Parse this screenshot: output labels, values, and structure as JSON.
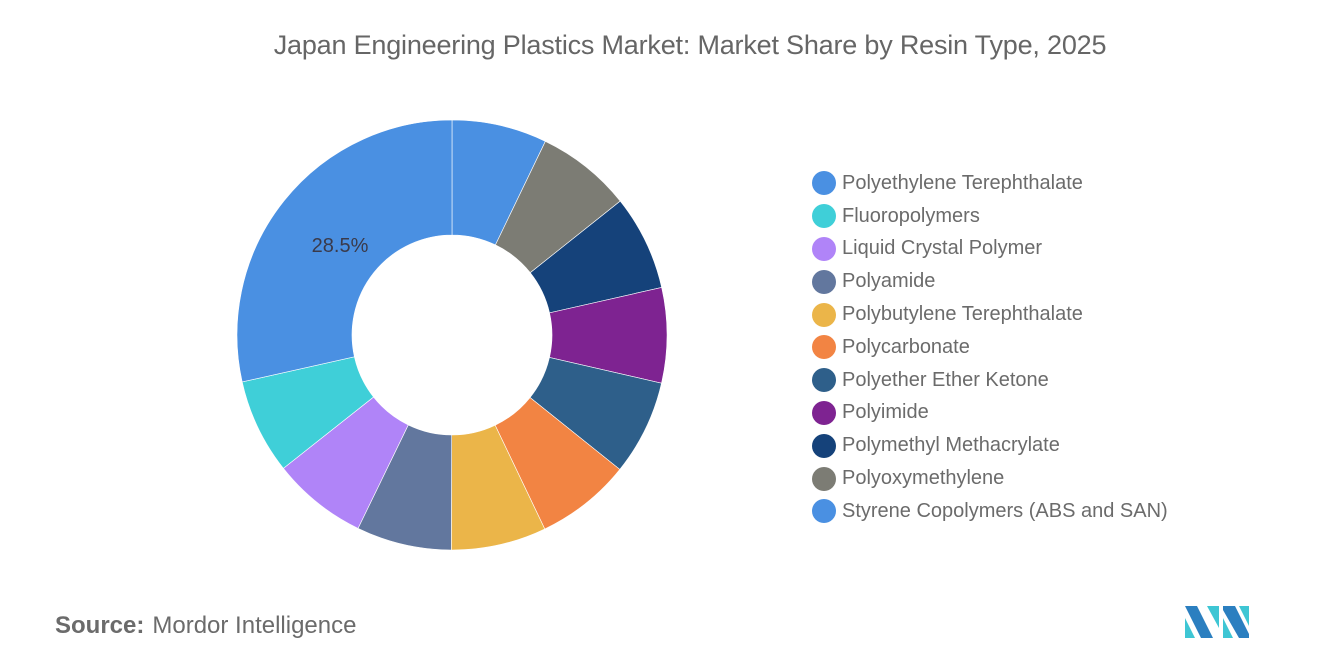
{
  "title": "Japan Engineering Plastics Market: Market Share by Resin Type, 2025",
  "source": {
    "label": "Source:",
    "value": "Mordor Intelligence"
  },
  "logo": {
    "name": "mordor-intelligence-logo"
  },
  "chart_data": {
    "type": "pie",
    "variant": "donut",
    "title": "Japan Engineering Plastics Market: Market Share by Resin Type, 2025",
    "legend_position": "right",
    "start_angle_deg": 0,
    "direction": "clockwise",
    "slice_order_clockwise_from_top": [
      "Styrene Copolymers (ABS and SAN)",
      "Polyoxymethylene",
      "Polymethyl Methacrylate",
      "Polyimide",
      "Polyether Ether Ketone",
      "Polycarbonate",
      "Polybutylene Terephthalate",
      "Polyamide",
      "Liquid Crystal Polymer",
      "Fluoropolymers",
      "Polyethylene Terephthalate"
    ],
    "categories": [
      "Polyethylene Terephthalate",
      "Fluoropolymers",
      "Liquid Crystal Polymer",
      "Polyamide",
      "Polybutylene Terephthalate",
      "Polycarbonate",
      "Polyether Ether Ketone",
      "Polyimide",
      "Polymethyl Methacrylate",
      "Polyoxymethylene",
      "Styrene Copolymers (ABS and SAN)"
    ],
    "values": [
      28.5,
      7.15,
      7.15,
      7.15,
      7.15,
      7.15,
      7.15,
      7.15,
      7.15,
      7.15,
      7.15
    ],
    "colors": [
      "#4a90e2",
      "#3fcfd8",
      "#b084f8",
      "#62779e",
      "#ebb549",
      "#f28443",
      "#2e5f8a",
      "#7e2391",
      "#15427a",
      "#7c7c74",
      "#4a90e2"
    ],
    "data_labels": [
      {
        "category": "Polyethylene Terephthalate",
        "text": "28.5%"
      }
    ],
    "unit": "%"
  },
  "legend": {
    "items": [
      {
        "label": "Polyethylene Terephthalate",
        "color": "#4a90e2"
      },
      {
        "label": "Fluoropolymers",
        "color": "#3fcfd8"
      },
      {
        "label": "Liquid Crystal Polymer",
        "color": "#b084f8"
      },
      {
        "label": "Polyamide",
        "color": "#62779e"
      },
      {
        "label": "Polybutylene Terephthalate",
        "color": "#ebb549"
      },
      {
        "label": "Polycarbonate",
        "color": "#f28443"
      },
      {
        "label": "Polyether Ether Ketone",
        "color": "#2e5f8a"
      },
      {
        "label": "Polyimide",
        "color": "#7e2391"
      },
      {
        "label": "Polymethyl Methacrylate",
        "color": "#15427a"
      },
      {
        "label": "Polyoxymethylene",
        "color": "#7c7c74"
      },
      {
        "label": "Styrene Copolymers (ABS and SAN)",
        "color": "#4a90e2"
      }
    ]
  }
}
